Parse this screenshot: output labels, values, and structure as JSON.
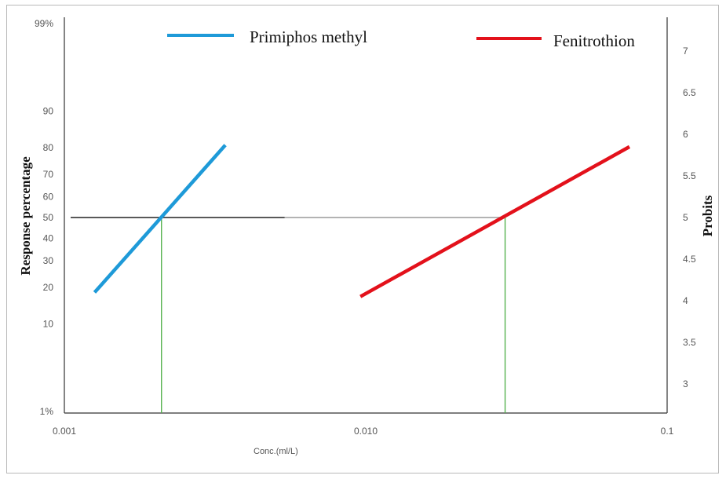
{
  "chart_data": {
    "type": "line",
    "x_scale": "log",
    "xlim": [
      0.001,
      0.1
    ],
    "xlabel": "Conc.(ml/L)",
    "x_ticks": [
      {
        "value": 0.001,
        "label": "0.001"
      },
      {
        "value": 0.01,
        "label": "0.010"
      },
      {
        "value": 0.1,
        "label": "0.1"
      }
    ],
    "ylabel_left": "Response percentage",
    "ylabel_right": "Probits",
    "ylim_probit": [
      2.65,
      7.35
    ],
    "left_ticks": [
      {
        "label": "1%",
        "probit": 2.67
      },
      {
        "label": "10",
        "probit": 3.72
      },
      {
        "label": "20",
        "probit": 4.16
      },
      {
        "label": "30",
        "probit": 4.48
      },
      {
        "label": "40",
        "probit": 4.75
      },
      {
        "label": "50",
        "probit": 5.0
      },
      {
        "label": "60",
        "probit": 5.25
      },
      {
        "label": "70",
        "probit": 5.52
      },
      {
        "label": "80",
        "probit": 5.84
      },
      {
        "label": "90",
        "probit": 6.28
      },
      {
        "label": "99%",
        "probit": 7.33
      }
    ],
    "right_ticks": [
      "3",
      "3.5",
      "4",
      "4.5",
      "5",
      "5.5",
      "6",
      "6.5",
      "7"
    ],
    "grid": false,
    "legend_position": "top",
    "series": [
      {
        "name": "Primiphos methyl",
        "color": "#1e9ad8",
        "x": [
          0.00126,
          0.00342
        ],
        "y": [
          4.1,
          5.87
        ]
      },
      {
        "name": "Fenitrothion",
        "color": "#e3111b",
        "x": [
          0.0096,
          0.075
        ],
        "y": [
          4.05,
          5.85
        ]
      }
    ],
    "reference_line": {
      "probit": 5.0
    },
    "lc50_markers": [
      {
        "series": "Primiphos methyl",
        "x": 0.0021,
        "color": "#55b24f"
      },
      {
        "series": "Fenitrothion",
        "x": 0.029,
        "color": "#55b24f"
      }
    ]
  }
}
